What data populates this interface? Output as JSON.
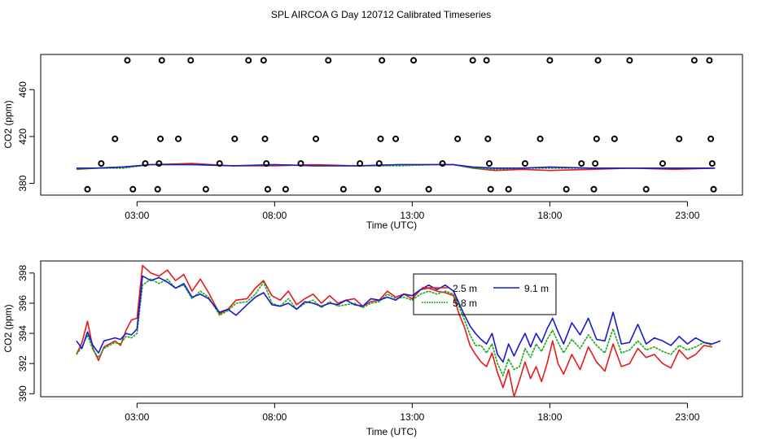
{
  "figure": {
    "title": "SPL AIRCOA G  Day 120712  Calibrated Timeseries"
  },
  "chart_data": [
    {
      "type": "scatter",
      "xlabel": "Time (UTC)",
      "ylabel": "CO2 (ppm)",
      "xlim": [
        -0.5,
        25.0
      ],
      "ylim": [
        370,
        490
      ],
      "xticks": [
        {
          "value": 3,
          "label": "03:00"
        },
        {
          "value": 8,
          "label": "08:00"
        },
        {
          "value": 13,
          "label": "13:00"
        },
        {
          "value": 18,
          "label": "18:00"
        },
        {
          "value": 23,
          "label": "23:00"
        }
      ],
      "yticks": [
        {
          "value": 380,
          "label": "380"
        },
        {
          "value": 420,
          "label": "420"
        },
        {
          "value": 460,
          "label": "460"
        }
      ],
      "markers": {
        "color": "#000000",
        "points": [
          [
            1.2,
            375
          ],
          [
            1.7,
            397
          ],
          [
            2.2,
            418
          ],
          [
            2.65,
            485
          ],
          [
            2.85,
            375
          ],
          [
            3.3,
            397
          ],
          [
            3.75,
            375
          ],
          [
            3.8,
            397
          ],
          [
            3.85,
            418
          ],
          [
            3.9,
            485
          ],
          [
            4.5,
            418
          ],
          [
            4.95,
            485
          ],
          [
            5.5,
            375
          ],
          [
            6.0,
            397
          ],
          [
            6.55,
            418
          ],
          [
            7.05,
            485
          ],
          [
            7.6,
            485
          ],
          [
            7.65,
            418
          ],
          [
            7.7,
            397
          ],
          [
            7.75,
            375
          ],
          [
            8.4,
            375
          ],
          [
            8.95,
            397
          ],
          [
            9.5,
            418
          ],
          [
            9.95,
            485
          ],
          [
            10.5,
            375
          ],
          [
            11.1,
            397
          ],
          [
            11.75,
            375
          ],
          [
            11.8,
            397
          ],
          [
            11.85,
            418
          ],
          [
            11.9,
            485
          ],
          [
            12.4,
            418
          ],
          [
            13.05,
            485
          ],
          [
            13.6,
            375
          ],
          [
            14.1,
            397
          ],
          [
            14.65,
            418
          ],
          [
            15.2,
            485
          ],
          [
            15.7,
            485
          ],
          [
            15.75,
            418
          ],
          [
            15.8,
            397
          ],
          [
            15.85,
            375
          ],
          [
            16.5,
            375
          ],
          [
            17.1,
            397
          ],
          [
            17.65,
            418
          ],
          [
            18.0,
            485
          ],
          [
            18.6,
            375
          ],
          [
            19.15,
            397
          ],
          [
            19.6,
            375
          ],
          [
            19.65,
            397
          ],
          [
            19.7,
            418
          ],
          [
            19.75,
            485
          ],
          [
            20.35,
            418
          ],
          [
            20.9,
            485
          ],
          [
            21.5,
            375
          ],
          [
            22.1,
            397
          ],
          [
            22.7,
            418
          ],
          [
            23.25,
            485
          ],
          [
            23.8,
            485
          ],
          [
            23.85,
            418
          ],
          [
            23.9,
            397
          ],
          [
            23.95,
            375
          ]
        ]
      },
      "series": [
        {
          "name": "2.5 m",
          "color": "#e41a1c",
          "x": [
            0.8,
            1.5,
            2.5,
            3.5,
            5.0,
            6.5,
            8.0,
            9.5,
            11.0,
            12.5,
            13.8,
            14.5,
            15.2,
            16.0,
            17.0,
            18.0,
            19.5,
            21.0,
            22.5,
            24.0
          ],
          "y": [
            392,
            393,
            394,
            396,
            397,
            395,
            395,
            396,
            395,
            396,
            396,
            396,
            393,
            391,
            392,
            391,
            392,
            393,
            392,
            393
          ]
        },
        {
          "name": "5.8 m",
          "color": "#1aa81a",
          "x": [
            0.8,
            1.5,
            2.5,
            3.5,
            5.0,
            6.5,
            8.0,
            9.5,
            11.0,
            12.5,
            13.8,
            14.5,
            15.2,
            16.0,
            17.0,
            18.0,
            19.5,
            21.0,
            22.5,
            24.0
          ],
          "y": [
            392,
            393,
            393,
            396,
            396,
            395,
            396,
            395,
            395,
            395,
            396,
            396,
            393,
            392,
            393,
            393,
            393,
            393,
            393,
            393
          ]
        },
        {
          "name": "9.1 m",
          "color": "#1a1acc",
          "x": [
            0.8,
            1.5,
            2.5,
            3.5,
            5.0,
            6.5,
            8.0,
            9.5,
            11.0,
            12.5,
            13.8,
            14.5,
            15.2,
            16.0,
            17.0,
            18.0,
            19.5,
            21.0,
            22.5,
            24.0
          ],
          "y": [
            393,
            393,
            394,
            396,
            396,
            395,
            396,
            395,
            395,
            396,
            396,
            396,
            394,
            393,
            393,
            394,
            393,
            393,
            393,
            393
          ]
        }
      ]
    },
    {
      "type": "line",
      "xlabel": "Time (UTC)",
      "ylabel": "CO2 (ppm)",
      "xlim": [
        -0.5,
        25.0
      ],
      "ylim": [
        389.8,
        398.8
      ],
      "xticks": [
        {
          "value": 3,
          "label": "03:00"
        },
        {
          "value": 8,
          "label": "08:00"
        },
        {
          "value": 13,
          "label": "13:00"
        },
        {
          "value": 18,
          "label": "18:00"
        },
        {
          "value": 23,
          "label": "23:00"
        }
      ],
      "yticks": [
        {
          "value": 390,
          "label": "390"
        },
        {
          "value": 392,
          "label": "392"
        },
        {
          "value": 394,
          "label": "394"
        },
        {
          "value": 396,
          "label": "396"
        },
        {
          "value": 398,
          "label": "398"
        }
      ],
      "legend": {
        "placement": "top-right",
        "entries": [
          {
            "label": "2.5 m",
            "color": "#e41a1c"
          },
          {
            "label": "9.1 m",
            "color": "#1a1acc"
          },
          {
            "label": "5.8 m",
            "color": "#1aa81a"
          }
        ]
      },
      "series": [
        {
          "name": "2.5 m",
          "color": "#e41a1c",
          "x": [
            0.8,
            1.0,
            1.2,
            1.4,
            1.6,
            1.8,
            2.0,
            2.2,
            2.4,
            2.6,
            2.8,
            3.0,
            3.2,
            3.5,
            3.8,
            4.1,
            4.4,
            4.7,
            5.0,
            5.3,
            5.6,
            6.0,
            6.3,
            6.6,
            7.0,
            7.3,
            7.6,
            7.9,
            8.2,
            8.5,
            8.8,
            9.1,
            9.4,
            9.7,
            10.0,
            10.3,
            10.6,
            10.9,
            11.2,
            11.5,
            11.8,
            12.1,
            12.4,
            12.7,
            13.0,
            13.3,
            13.6,
            13.9,
            14.2,
            14.5,
            14.7,
            14.9,
            15.1,
            15.3,
            15.5,
            15.7,
            15.9,
            16.1,
            16.3,
            16.5,
            16.7,
            16.9,
            17.1,
            17.3,
            17.5,
            17.7,
            17.9,
            18.1,
            18.3,
            18.5,
            18.8,
            19.1,
            19.4,
            19.7,
            20.0,
            20.3,
            20.6,
            20.9,
            21.2,
            21.5,
            21.8,
            22.1,
            22.4,
            22.7,
            23.0,
            23.3,
            23.6,
            23.9
          ],
          "y": [
            392.6,
            393.4,
            394.8,
            393.0,
            392.2,
            393.1,
            393.3,
            393.5,
            393.2,
            394.2,
            394.9,
            395.0,
            398.5,
            398.0,
            397.8,
            398.2,
            397.5,
            397.9,
            396.8,
            397.6,
            396.7,
            395.3,
            395.6,
            396.2,
            396.3,
            397.0,
            397.5,
            396.5,
            396.2,
            396.8,
            395.9,
            396.3,
            396.6,
            396.0,
            396.5,
            396.0,
            396.2,
            396.3,
            395.8,
            396.1,
            396.2,
            396.8,
            396.4,
            396.6,
            396.3,
            396.9,
            397.0,
            396.8,
            396.7,
            396.5,
            395.3,
            394.4,
            393.2,
            392.6,
            392.1,
            391.8,
            392.7,
            391.4,
            390.4,
            391.6,
            389.8,
            390.9,
            392.1,
            391.0,
            391.8,
            390.8,
            392.0,
            393.5,
            392.0,
            391.3,
            392.6,
            391.6,
            393.1,
            392.1,
            391.5,
            393.3,
            391.8,
            392.0,
            393.0,
            392.4,
            392.6,
            392.0,
            391.7,
            392.9,
            392.3,
            392.6,
            393.2,
            393.1
          ]
        },
        {
          "name": "5.8 m",
          "color": "#1aa81a",
          "x": [
            0.8,
            1.0,
            1.2,
            1.4,
            1.6,
            1.8,
            2.0,
            2.2,
            2.4,
            2.6,
            2.8,
            3.0,
            3.2,
            3.5,
            3.8,
            4.1,
            4.4,
            4.7,
            5.0,
            5.3,
            5.6,
            6.0,
            6.3,
            6.6,
            7.0,
            7.3,
            7.6,
            7.9,
            8.2,
            8.5,
            8.8,
            9.1,
            9.4,
            9.7,
            10.0,
            10.3,
            10.6,
            10.9,
            11.2,
            11.5,
            11.8,
            12.1,
            12.4,
            12.7,
            13.0,
            13.3,
            13.6,
            13.9,
            14.2,
            14.5,
            14.7,
            14.9,
            15.1,
            15.3,
            15.5,
            15.7,
            15.9,
            16.1,
            16.3,
            16.5,
            16.7,
            16.9,
            17.1,
            17.3,
            17.5,
            17.7,
            17.9,
            18.1,
            18.3,
            18.5,
            18.8,
            19.1,
            19.4,
            19.7,
            20.0,
            20.3,
            20.6,
            20.9,
            21.2,
            21.5,
            21.8,
            22.1,
            22.4,
            22.7,
            23.0,
            23.3,
            23.6,
            23.9
          ],
          "y": [
            392.6,
            393.1,
            393.9,
            392.9,
            392.4,
            393.0,
            393.2,
            393.4,
            393.3,
            393.8,
            393.7,
            394.0,
            397.2,
            397.6,
            397.3,
            397.6,
            397.0,
            397.2,
            396.3,
            396.8,
            396.4,
            395.2,
            395.5,
            396.0,
            396.1,
            396.6,
            397.4,
            396.0,
            395.8,
            396.3,
            395.6,
            396.0,
            396.2,
            395.7,
            396.1,
            395.8,
            395.9,
            396.0,
            395.7,
            396.0,
            396.1,
            396.6,
            396.3,
            396.4,
            396.2,
            396.6,
            396.8,
            396.6,
            396.8,
            396.6,
            395.8,
            394.9,
            393.9,
            393.2,
            393.2,
            392.7,
            393.3,
            392.0,
            391.2,
            392.3,
            391.6,
            391.8,
            393.0,
            392.4,
            393.3,
            392.8,
            393.6,
            394.2,
            393.4,
            392.7,
            393.6,
            393.0,
            393.9,
            393.2,
            392.7,
            394.3,
            392.7,
            392.9,
            393.5,
            392.9,
            393.1,
            392.8,
            392.6,
            393.2,
            392.9,
            393.1,
            393.4,
            393.2
          ]
        },
        {
          "name": "9.1 m",
          "color": "#1a1acc",
          "x": [
            0.8,
            1.0,
            1.2,
            1.4,
            1.6,
            1.8,
            2.0,
            2.2,
            2.4,
            2.6,
            2.8,
            3.0,
            3.2,
            3.5,
            3.8,
            4.1,
            4.4,
            4.7,
            5.0,
            5.3,
            5.6,
            6.0,
            6.3,
            6.6,
            7.0,
            7.3,
            7.6,
            7.9,
            8.2,
            8.5,
            8.8,
            9.1,
            9.4,
            9.7,
            10.0,
            10.3,
            10.6,
            10.9,
            11.2,
            11.5,
            11.8,
            12.1,
            12.4,
            12.7,
            13.0,
            13.3,
            13.6,
            13.9,
            14.2,
            14.5,
            14.7,
            14.9,
            15.1,
            15.3,
            15.5,
            15.7,
            15.9,
            16.1,
            16.3,
            16.5,
            16.7,
            16.9,
            17.1,
            17.3,
            17.5,
            17.7,
            17.9,
            18.1,
            18.3,
            18.5,
            18.8,
            19.1,
            19.4,
            19.7,
            20.0,
            20.3,
            20.6,
            20.9,
            21.2,
            21.5,
            21.8,
            22.1,
            22.4,
            22.7,
            23.0,
            23.3,
            23.6,
            23.9,
            24.2
          ],
          "y": [
            393.5,
            393.0,
            394.1,
            393.2,
            392.7,
            393.5,
            393.6,
            393.7,
            393.6,
            394.0,
            393.9,
            394.3,
            397.8,
            397.5,
            397.7,
            397.4,
            397.0,
            397.3,
            396.4,
            396.6,
            396.3,
            395.4,
            395.6,
            395.2,
            395.9,
            396.4,
            396.7,
            395.9,
            395.8,
            396.0,
            395.6,
            396.1,
            396.0,
            395.8,
            396.0,
            395.9,
            396.2,
            395.9,
            395.8,
            396.3,
            396.2,
            396.4,
            396.2,
            396.6,
            396.5,
            396.9,
            397.2,
            396.9,
            397.2,
            396.8,
            396.0,
            395.2,
            394.5,
            394.0,
            393.6,
            393.3,
            394.0,
            392.6,
            392.1,
            393.3,
            392.5,
            393.3,
            394.0,
            393.1,
            394.0,
            393.4,
            394.3,
            395.0,
            394.1,
            393.3,
            394.7,
            393.9,
            395.0,
            393.6,
            393.5,
            395.4,
            393.3,
            393.4,
            394.6,
            393.3,
            393.7,
            393.5,
            393.2,
            393.8,
            393.3,
            393.7,
            393.4,
            393.3,
            393.5
          ]
        }
      ]
    }
  ]
}
